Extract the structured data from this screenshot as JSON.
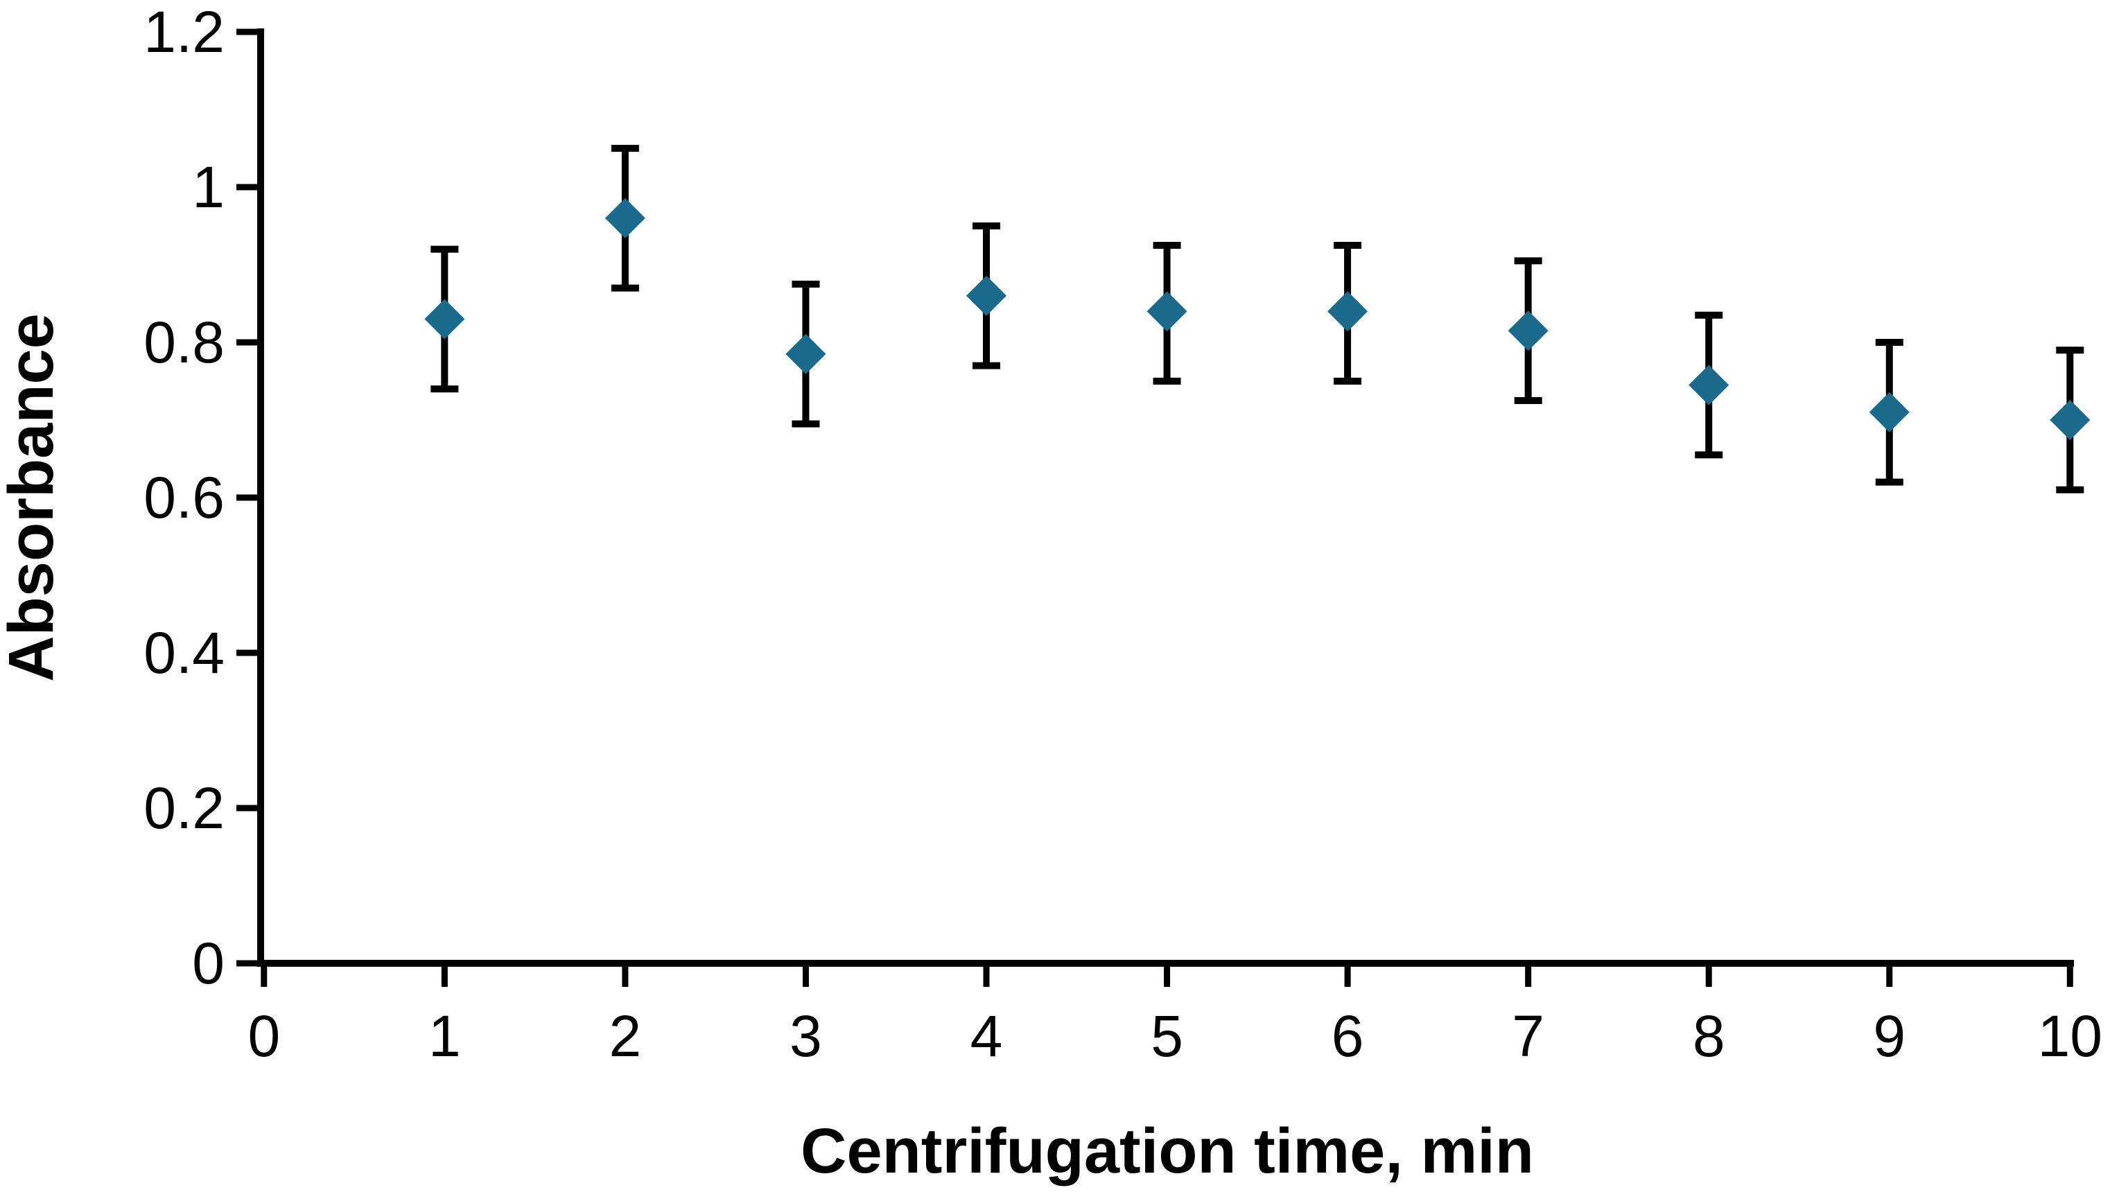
{
  "chart_data": {
    "type": "scatter",
    "title": "",
    "xlabel": "Centrifugation time, min",
    "ylabel": "Absorbance",
    "x": [
      1,
      2,
      3,
      4,
      5,
      6,
      7,
      8,
      9,
      10
    ],
    "series": [
      {
        "name": "Absorbance",
        "values": [
          0.83,
          0.96,
          0.785,
          0.86,
          0.84,
          0.84,
          0.815,
          0.745,
          0.71,
          0.7
        ],
        "error_upper": [
          0.92,
          1.05,
          0.875,
          0.95,
          0.925,
          0.925,
          0.905,
          0.835,
          0.8,
          0.79
        ],
        "error_lower": [
          0.74,
          0.87,
          0.695,
          0.77,
          0.75,
          0.75,
          0.725,
          0.655,
          0.62,
          0.61
        ]
      }
    ],
    "xlim": [
      0,
      10
    ],
    "ylim": [
      0,
      1.2
    ],
    "x_ticks": [
      "0",
      "1",
      "2",
      "3",
      "4",
      "5",
      "6",
      "7",
      "8",
      "9",
      "10"
    ],
    "y_ticks": [
      "0",
      "0.2",
      "0.4",
      "0.6",
      "0.8",
      "1",
      "1.2"
    ],
    "grid": false,
    "legend": false,
    "marker": "diamond",
    "marker_color": "#1A6B8B",
    "error_bar_color": "#000000",
    "axis_color": "#000000",
    "background": "#FFFFFF"
  }
}
